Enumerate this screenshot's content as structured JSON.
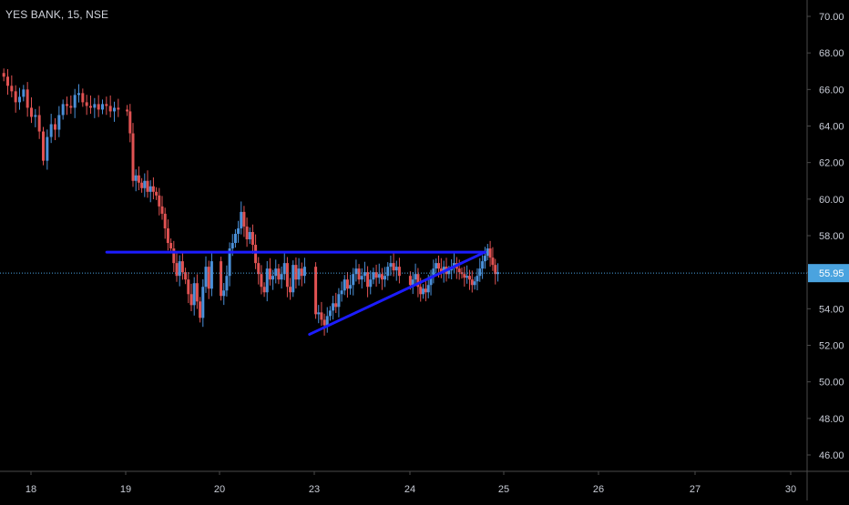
{
  "header": {
    "symbol_label": "YES BANK, 15, NSE"
  },
  "colors": {
    "background": "#000000",
    "up_candle": "#4a90d9",
    "down_candle": "#e05252",
    "trendline": "#1c1cff",
    "price_line": "#4aa3df",
    "axis_text": "#c8ccd6",
    "axis_line": "#4a4a4a",
    "price_badge_bg": "#4aa3df",
    "price_badge_text": "#ffffff"
  },
  "chart_data": {
    "type": "candlestick",
    "title": "YES BANK, 15, NSE",
    "x_ticks": [
      "18",
      "19",
      "20",
      "23",
      "24",
      "25",
      "26",
      "27",
      "30"
    ],
    "y_ticks": [
      "70.00",
      "68.00",
      "66.00",
      "64.00",
      "62.00",
      "60.00",
      "58.00",
      "56.00",
      "54.00",
      "52.00",
      "50.00",
      "48.00",
      "46.00"
    ],
    "ylim": [
      45,
      70.5
    ],
    "xlim": [
      -0.01,
      8.42
    ],
    "y_scale": "linear",
    "grid": false,
    "legend": "none",
    "last_price": "55.95",
    "last_price_value": 55.95,
    "trendlines": [
      {
        "name": "resistance",
        "x": [
          0.8,
          4.8
        ],
        "y": [
          57.1,
          57.1
        ]
      },
      {
        "name": "support",
        "x": [
          2.95,
          4.8
        ],
        "y": [
          52.6,
          57.1
        ]
      }
    ],
    "days": [
      {
        "day_index": 0,
        "closes": [
          66.7,
          66.2,
          65.9,
          65.3,
          65.6,
          66.0,
          65.0,
          64.5,
          64.6,
          63.7,
          62.1,
          63.4,
          64.1,
          63.8,
          64.6,
          65.2,
          65.1,
          65.0,
          65.7,
          65.8,
          65.3,
          65.1,
          65.0,
          65.2,
          64.9,
          65.2,
          65.1,
          64.8,
          65.0,
          64.9
        ]
      },
      {
        "day_index": 1,
        "closes": [
          64.8,
          63.6,
          61.0,
          61.3,
          60.9,
          60.6,
          61.0,
          60.4,
          60.7,
          60.4,
          60.2,
          59.6,
          59.2,
          58.4,
          57.6,
          57.3,
          56.5,
          55.8,
          56.6,
          56.0,
          55.6,
          54.8,
          54.2,
          55.4,
          54.4,
          53.5,
          55.2,
          56.3,
          55.1,
          56.6
        ]
      },
      {
        "day_index": 2,
        "closes": [
          54.7,
          55.0,
          55.8,
          57.3,
          57.6,
          58.1,
          58.4,
          59.3,
          58.5,
          57.8,
          58.2,
          57.5,
          56.5,
          55.9,
          55.2,
          54.9,
          56.2,
          55.6,
          55.8,
          56.2,
          55.6,
          55.9,
          56.5,
          55.2,
          54.9,
          56.4,
          55.6,
          56.2,
          55.8,
          56.3
        ]
      },
      {
        "day_index": 3,
        "closes": [
          53.7,
          53.8,
          53.4,
          53.1,
          53.6,
          53.9,
          54.3,
          54.1,
          54.8,
          55.0,
          55.6,
          55.1,
          55.3,
          55.9,
          56.2,
          55.6,
          55.8,
          56.0,
          55.2,
          55.6,
          56.0,
          55.7,
          55.9,
          55.6,
          55.8,
          56.3,
          56.5,
          56.1,
          56.3,
          55.8
        ]
      },
      {
        "day_index": 4,
        "closes": [
          55.3,
          55.6,
          55.9,
          55.2,
          54.8,
          55.1,
          54.9,
          55.3,
          55.8,
          56.2,
          56.5,
          56.2,
          56.0,
          56.3,
          55.9,
          56.1,
          56.3,
          56.5,
          56.2,
          56.0,
          55.9,
          55.7,
          55.8,
          55.6,
          55.3,
          55.5,
          55.8,
          56.2,
          56.6,
          56.9,
          57.3,
          56.8,
          56.4,
          55.9,
          56.0
        ]
      }
    ]
  }
}
